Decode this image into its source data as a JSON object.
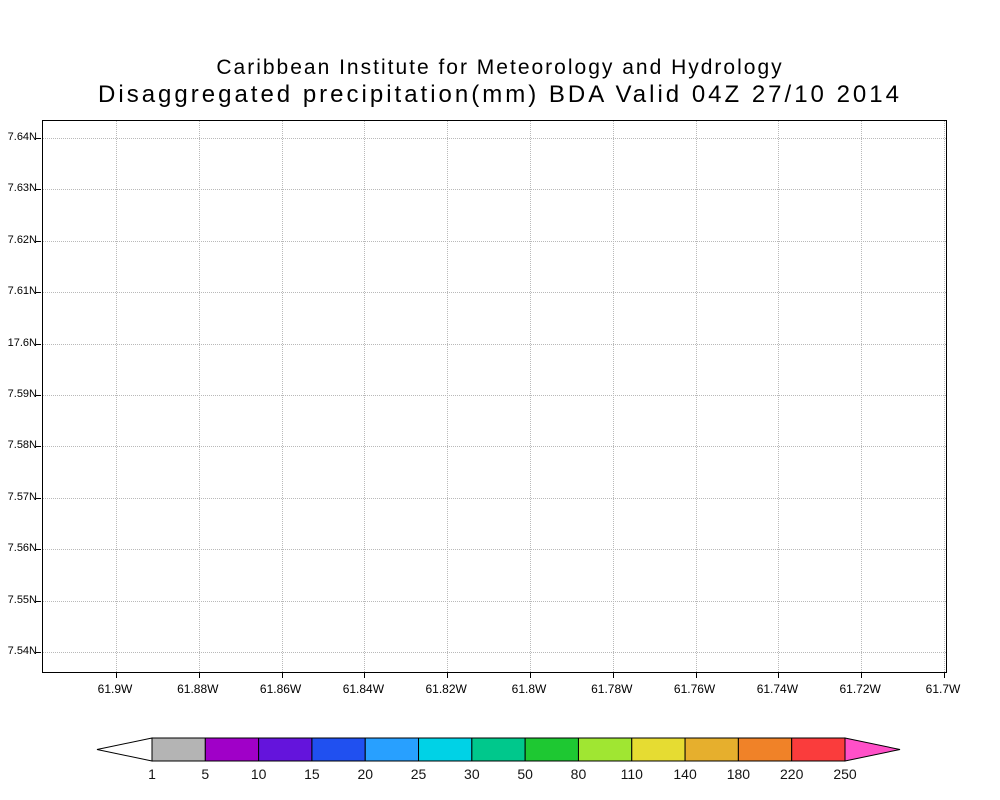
{
  "header": {
    "title": "Caribbean Institute for Meteorology and Hydrology",
    "subtitle": "Disaggregated precipitation(mm) BDA Valid 04Z 27/10 2014"
  },
  "chart_data": {
    "type": "heatmap",
    "title": "Caribbean Institute for Meteorology and Hydrology",
    "subtitle": "Disaggregated precipitation(mm) BDA Valid 04Z 27/10 2014",
    "grid": true,
    "legend_position": "bottom",
    "x_axis": {
      "tick_labels": [
        "61.9W",
        "61.88W",
        "61.86W",
        "61.84W",
        "61.82W",
        "61.8W",
        "61.78W",
        "61.76W",
        "61.74W",
        "61.72W",
        "61.7W"
      ]
    },
    "y_axis": {
      "tick_labels": [
        "7.64N",
        "7.63N",
        "7.62N",
        "7.61N",
        "17.6N",
        "7.59N",
        "7.58N",
        "7.57N",
        "7.56N",
        "7.55N",
        "7.54N"
      ]
    },
    "values": [],
    "colorbar": {
      "levels": [
        "1",
        "5",
        "10",
        "15",
        "20",
        "25",
        "30",
        "50",
        "80",
        "110",
        "140",
        "180",
        "220",
        "250"
      ],
      "below_color": "#ffffff",
      "colors": [
        "#b4b4b4",
        "#a000c8",
        "#6414dc",
        "#2050f0",
        "#28a0ff",
        "#00d2e6",
        "#00c88c",
        "#1ec832",
        "#a0e632",
        "#e6dc32",
        "#e6af2d",
        "#f08228",
        "#fa3c3c"
      ],
      "above_color": "#ff50c8",
      "outline_color": "#000000"
    }
  }
}
